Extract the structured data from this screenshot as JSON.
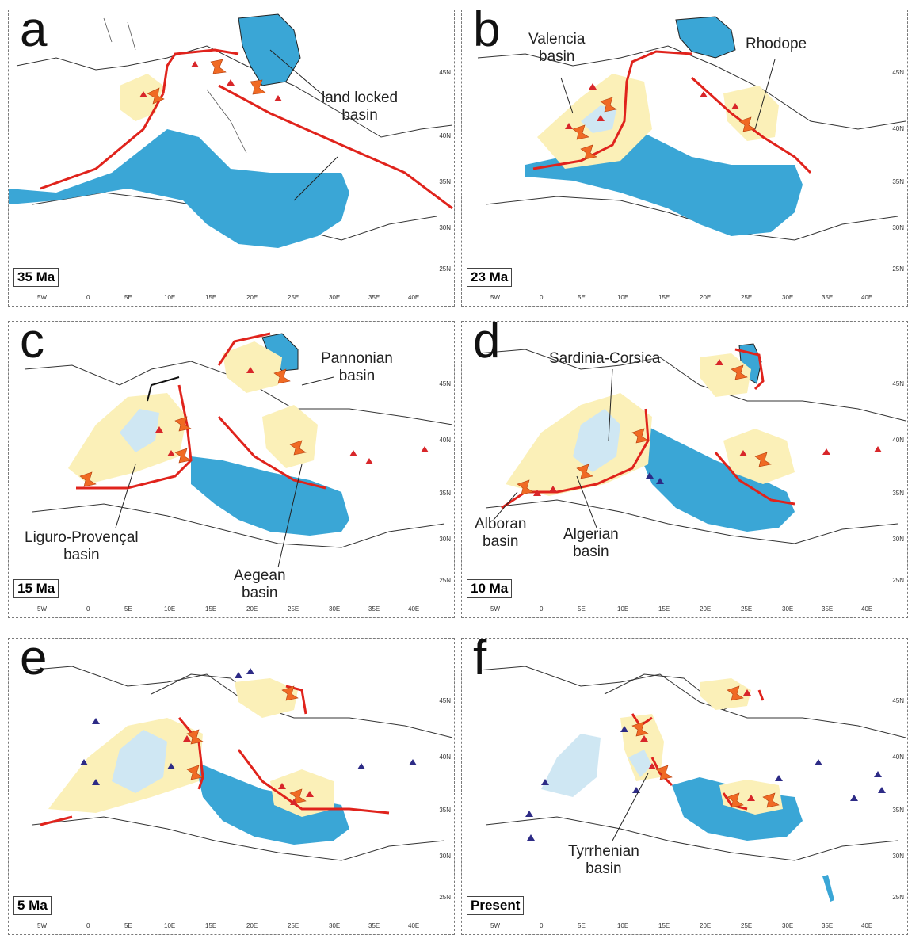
{
  "colors": {
    "basin_sea": "#3aa6d6",
    "basin_light": "#cfe7f3",
    "extension_zone": "#fbf0b8",
    "subduction_front": "#e0231c",
    "extension_arrow": "#f06a24",
    "volcano_red": "#d8262a",
    "volcano_blue": "#2d2b86",
    "coastline": "#333333"
  },
  "longitude_labels": [
    "5W",
    "0",
    "5E",
    "10E",
    "15E",
    "20E",
    "25E",
    "30E",
    "35E",
    "40E"
  ],
  "latitude_labels": [
    "45N",
    "40N",
    "35N",
    "30N",
    "25N"
  ],
  "panels": [
    {
      "letter": "a",
      "age": "35 Ma",
      "annotations": [
        {
          "text": "land locked\nbasin"
        }
      ]
    },
    {
      "letter": "b",
      "age": "23 Ma",
      "annotations": [
        {
          "text": "Valencia\nbasin"
        },
        {
          "text": "Rhodope"
        }
      ]
    },
    {
      "letter": "c",
      "age": "15 Ma",
      "annotations": [
        {
          "text": "Pannonian\nbasin"
        },
        {
          "text": "Liguro-Provençal\nbasin"
        },
        {
          "text": "Aegean\nbasin"
        }
      ]
    },
    {
      "letter": "d",
      "age": "10 Ma",
      "annotations": [
        {
          "text": "Sardinia-Corsica"
        },
        {
          "text": "Alboran\nbasin"
        },
        {
          "text": "Algerian\nbasin"
        }
      ]
    },
    {
      "letter": "e",
      "age": "5 Ma",
      "annotations": []
    },
    {
      "letter": "f",
      "age": "Present",
      "annotations": [
        {
          "text": "Tyrrhenian\nbasin"
        }
      ]
    }
  ]
}
